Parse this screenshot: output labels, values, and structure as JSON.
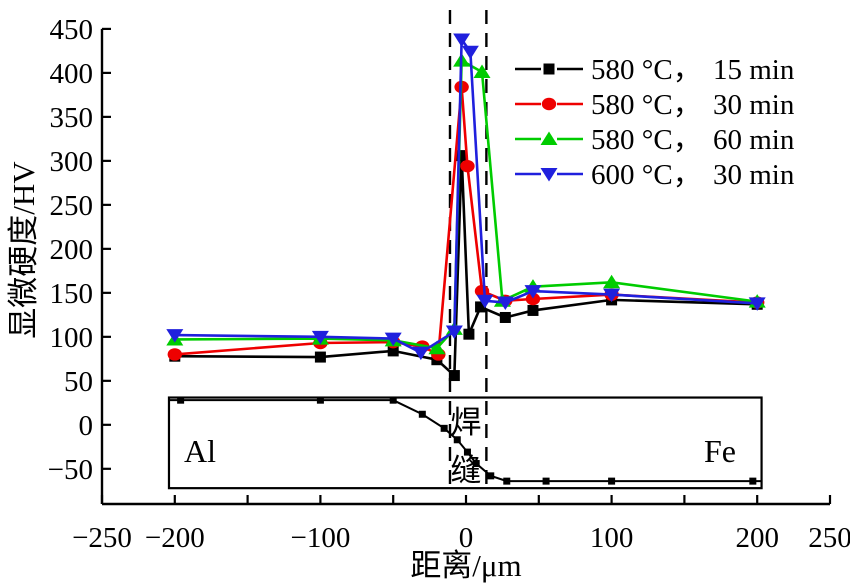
{
  "chart_data": {
    "type": "line",
    "title": "",
    "xlabel": "距离/μm",
    "ylabel": "显微硬度/HV",
    "xlim": [
      -250,
      250
    ],
    "ylim": [
      -90,
      450
    ],
    "x_tick_step": 50,
    "x_tick_labels": [
      -250,
      -200,
      -100,
      0,
      100,
      200,
      250
    ],
    "y_ticks": [
      -50,
      0,
      50,
      100,
      150,
      200,
      250,
      300,
      350,
      400,
      450
    ],
    "grid": false,
    "legend_position": "upper-right-inside",
    "series": [
      {
        "name": "580 °C，15 min",
        "legend_temp": "580 °C，",
        "legend_time": "15 min",
        "color": "#000000",
        "marker": "square",
        "x": [
          -200,
          -100,
          -50,
          -20,
          -8,
          -3,
          2,
          10,
          27,
          46,
          100,
          200
        ],
        "y": [
          78,
          77,
          84,
          74,
          56,
          306,
          103,
          134,
          122,
          130,
          142,
          137
        ]
      },
      {
        "name": "580 °C，30 min",
        "legend_temp": "580 °C，",
        "legend_time": "30 min",
        "color": "#ee0000",
        "marker": "circle",
        "x": [
          -200,
          -100,
          -50,
          -30,
          -19,
          -3,
          1,
          11,
          27,
          46,
          100,
          200
        ],
        "y": [
          80,
          93,
          94,
          89,
          80,
          384,
          294,
          152,
          141,
          143,
          148,
          139
        ]
      },
      {
        "name": "580 °C，60 min",
        "legend_temp": "580 °C，",
        "legend_time": "60 min",
        "color": "#00cc00",
        "marker": "triangle-up",
        "x": [
          -200,
          -100,
          -50,
          -20,
          -8,
          -3,
          11,
          25,
          46,
          100,
          200
        ],
        "y": [
          97,
          98,
          96,
          87,
          109,
          414,
          401,
          141,
          157,
          162,
          140
        ]
      },
      {
        "name": "600 °C，30 min",
        "legend_temp": "600 °C，",
        "legend_time": "30 min",
        "color": "#2020dd",
        "marker": "triangle-down",
        "x": [
          -200,
          -100,
          -50,
          -31,
          -8,
          -3,
          3,
          13,
          27,
          46,
          100,
          200
        ],
        "y": [
          102,
          100,
          98,
          82,
          106,
          438,
          424,
          141,
          139,
          152,
          148,
          138
        ]
      }
    ],
    "weld_zone": {
      "label": "焊缝",
      "boundary_x": [
        -11,
        14
      ]
    },
    "inset": {
      "left_label": "Al",
      "right_label": "Fe",
      "box": {
        "x0": -204,
        "x1": 203,
        "y_top": 31,
        "y_bottom": -72
      },
      "profile_x": [
        -204,
        -196,
        -100,
        -50,
        -30,
        -15,
        -6,
        1,
        7,
        17,
        28,
        55,
        100,
        197,
        203
      ],
      "profile_y": [
        28,
        28,
        28,
        28,
        12,
        -4,
        -17,
        -31,
        -44,
        -58,
        -64,
        -64,
        -64,
        -64,
        -64
      ]
    }
  }
}
